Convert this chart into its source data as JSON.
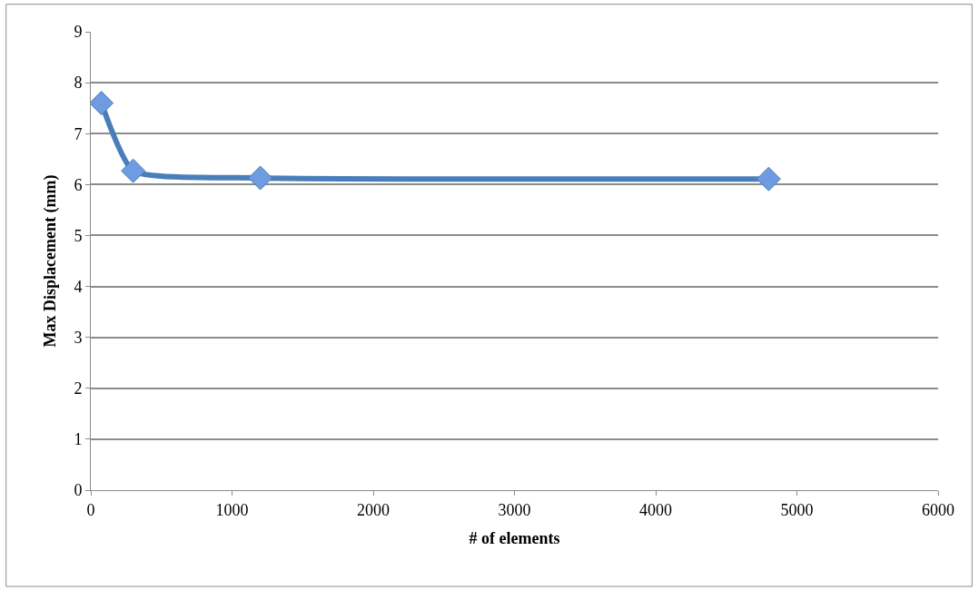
{
  "chart_data": {
    "type": "line",
    "xlabel": "# of elements",
    "ylabel": "Max Displacement (mm)",
    "x": [
      75,
      300,
      1200,
      4800
    ],
    "series": [
      {
        "color": "#4a7ebb",
        "values": [
          7.6,
          6.27,
          6.13,
          6.11
        ]
      }
    ],
    "xlim": [
      0,
      6000
    ],
    "xticks": [
      0,
      1000,
      2000,
      3000,
      4000,
      5000,
      6000
    ],
    "ylim": [
      0,
      9
    ],
    "yticks": [
      0,
      1,
      2,
      3,
      4,
      5,
      6,
      7,
      8,
      9
    ],
    "grid": "y",
    "marker": "diamond",
    "line_style": "solid"
  }
}
